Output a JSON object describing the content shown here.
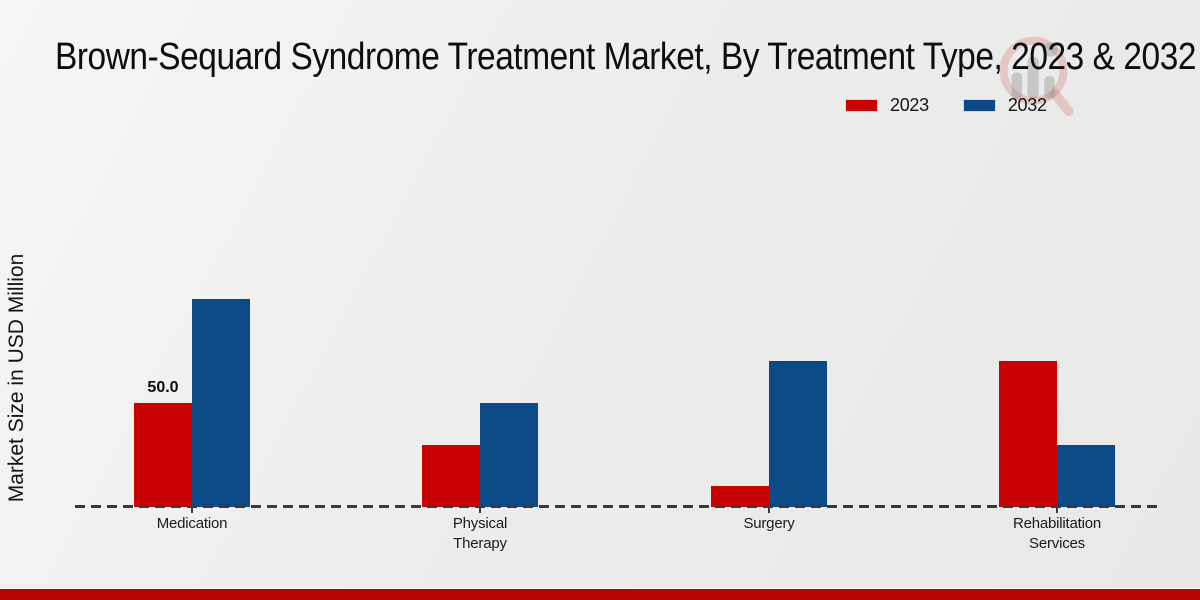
{
  "title": "Brown-Sequard Syndrome Treatment Market, By Treatment Type, 2023 & 2032",
  "y_axis_label": "Market Size in USD Million",
  "legend": {
    "position": "top-right",
    "items": [
      {
        "label": "2023",
        "color": "#c80202"
      },
      {
        "label": "2032",
        "color": "#0c4a87"
      }
    ]
  },
  "watermark_icon": "magnifier-bar-chart-logo",
  "footer": {
    "accent_color": "#b70404"
  },
  "chart_data": {
    "type": "bar",
    "title": "Brown-Sequard Syndrome Treatment Market, By Treatment Type, 2023 & 2032",
    "categories": [
      "Medication",
      "Physical Therapy",
      "Surgery",
      "Rehabilitation Services"
    ],
    "series": [
      {
        "name": "2023",
        "color": "#c80202",
        "values": [
          50.0,
          30.0,
          10.0,
          70.0
        ]
      },
      {
        "name": "2032",
        "color": "#0c4a87",
        "values": [
          100.0,
          50.0,
          70.0,
          30.0
        ]
      }
    ],
    "data_labels": [
      {
        "series": "2023",
        "category": "Medication",
        "text": "50.0"
      }
    ],
    "xlabel": "",
    "ylabel": "Market Size in USD Million",
    "ylim": [
      0,
      105
    ],
    "grid": false,
    "y_axis_ticks_visible": false,
    "baseline_style": "dashed",
    "legend_position": "top-right"
  }
}
